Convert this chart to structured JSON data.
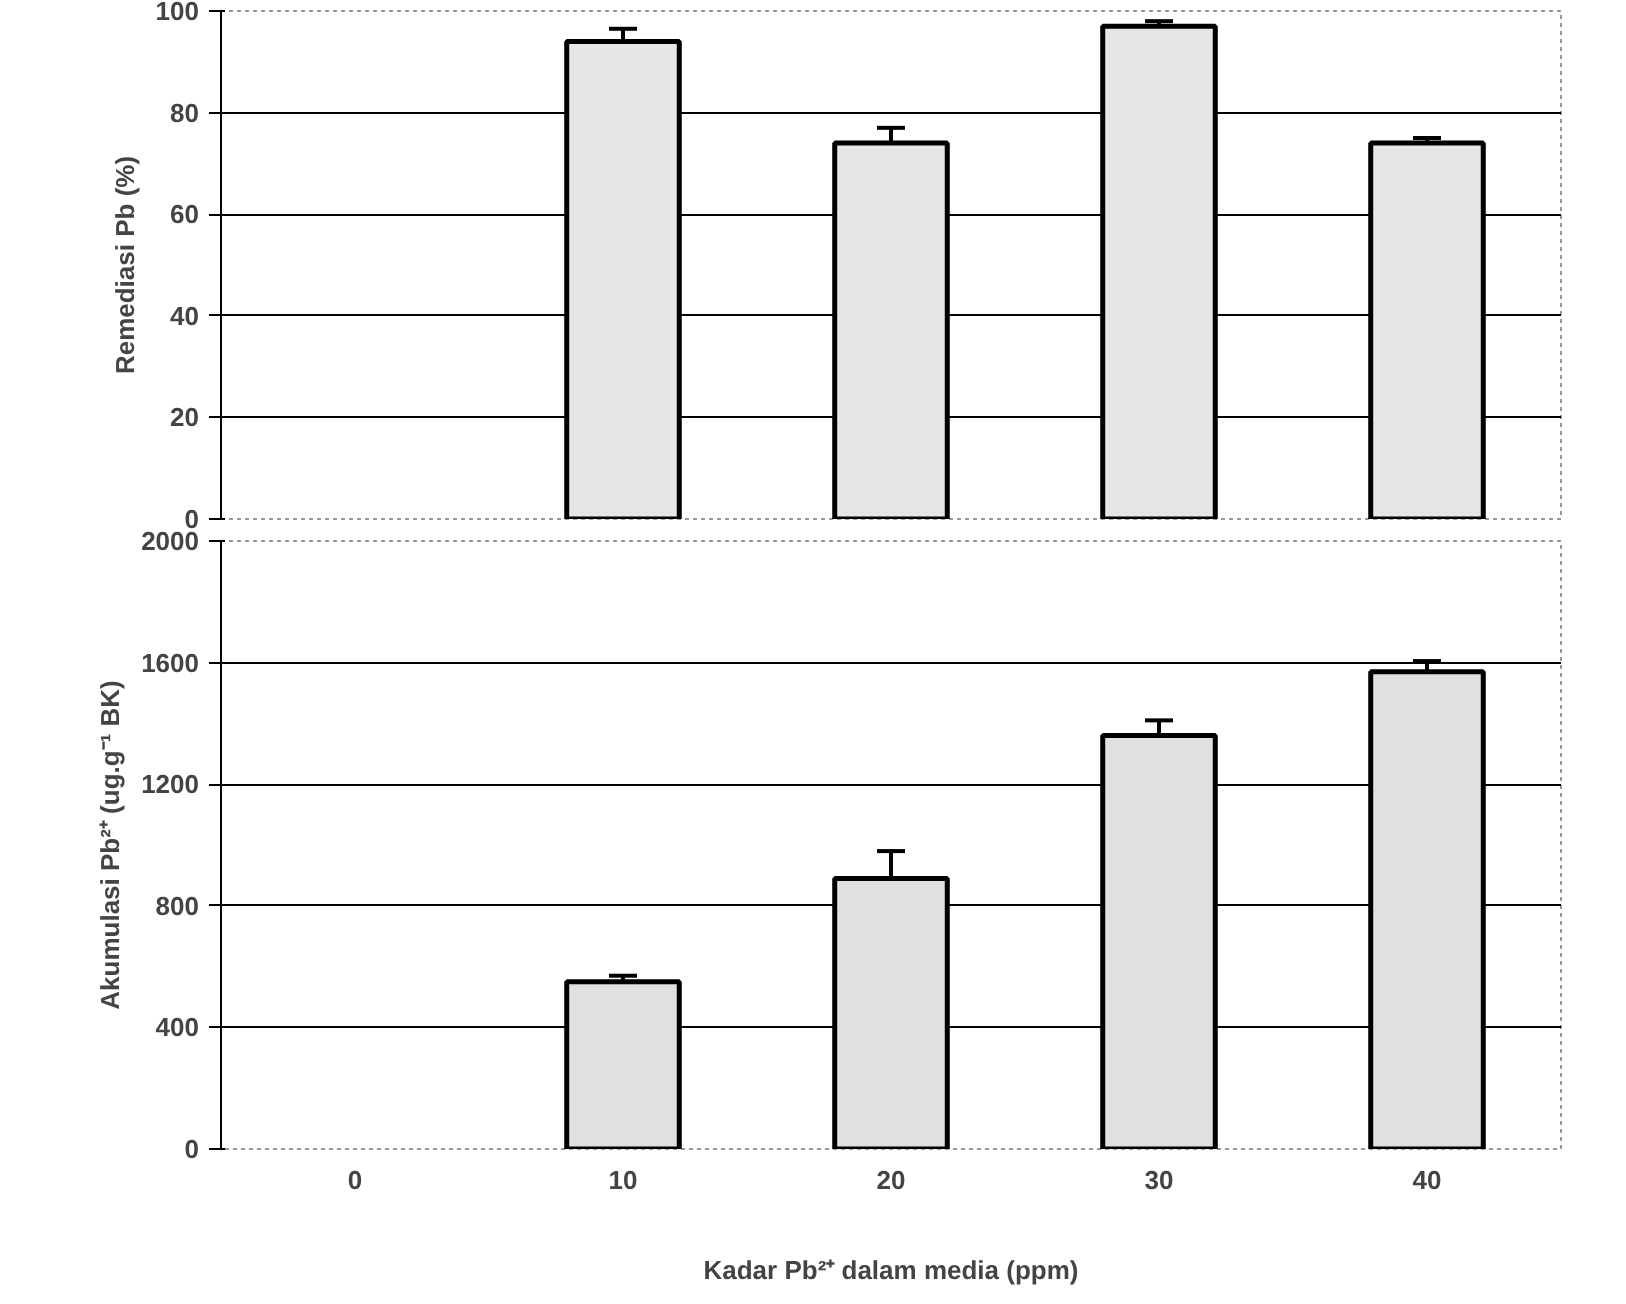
{
  "chart_data": [
    {
      "type": "bar",
      "ylabel": "Remediasi Pb (%)",
      "categories": [
        "0",
        "10",
        "20",
        "30",
        "40"
      ],
      "values": [
        null,
        94,
        74,
        97,
        74
      ],
      "errors": [
        null,
        2.5,
        3,
        1,
        1
      ],
      "color": "#e6e6e6",
      "ylim": [
        0,
        100
      ],
      "yticks": [
        0,
        20,
        40,
        60,
        80,
        100
      ],
      "grid": "y",
      "tick_labels": "y"
    },
    {
      "type": "bar",
      "ylabel": "Akumulasi Pb²⁺ (ug.g⁻¹ BK)",
      "xlabel": "Kadar Pb²⁺ dalam media (ppm)",
      "categories": [
        "0",
        "10",
        "20",
        "30",
        "40"
      ],
      "values": [
        null,
        550,
        890,
        1360,
        1570
      ],
      "errors": [
        null,
        20,
        90,
        50,
        35
      ],
      "color": "#e0e0e0",
      "ylim": [
        0,
        2000
      ],
      "yticks": [
        0,
        400,
        800,
        1200,
        1600,
        2000
      ],
      "grid": "y"
    }
  ]
}
